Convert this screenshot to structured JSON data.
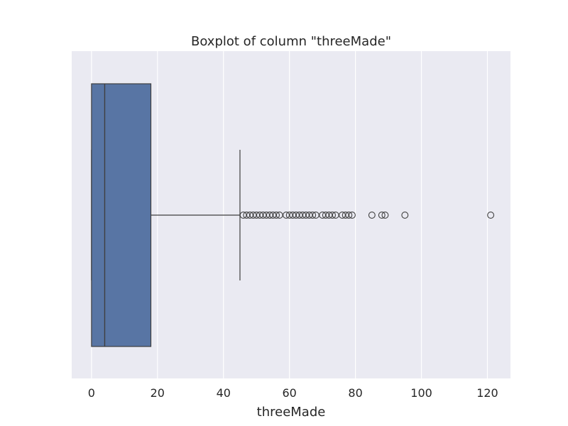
{
  "chart_data": {
    "type": "boxplot",
    "orientation": "horizontal",
    "title": "Boxplot of column \"threeMade\"",
    "xlabel": "threeMade",
    "ylabel": "",
    "xlim": [
      -6,
      127
    ],
    "xticks": [
      0,
      20,
      40,
      60,
      80,
      100,
      120
    ],
    "grid": true,
    "box": {
      "min": 0,
      "q1": 0,
      "median": 4,
      "q3": 18,
      "whisker_low": 0,
      "whisker_high": 45
    },
    "outliers": [
      46,
      47,
      48,
      49,
      50,
      51,
      52,
      53,
      54,
      55,
      56,
      57,
      59,
      60,
      61,
      62,
      63,
      64,
      65,
      66,
      67,
      68,
      70,
      71,
      72,
      73,
      74,
      76,
      77,
      78,
      79,
      85,
      88,
      89,
      95,
      121
    ],
    "colors": {
      "box_fill": "#5875a4",
      "line": "#3f3f3f",
      "background": "#eaeaf2",
      "grid": "#ffffff"
    }
  }
}
